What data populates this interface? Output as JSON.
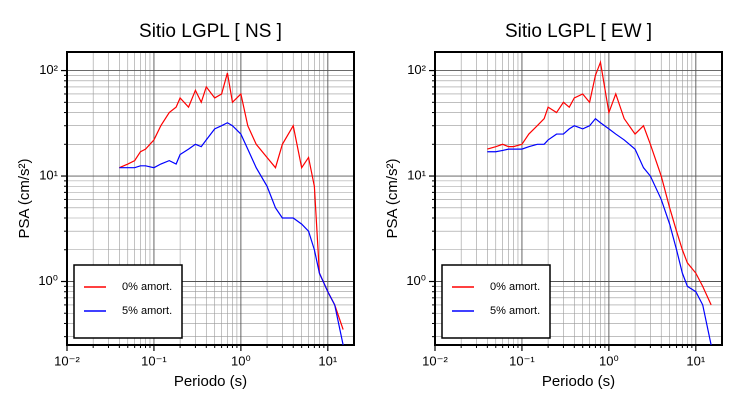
{
  "chart_data": [
    {
      "type": "line",
      "title": "Sitio LGPL [ NS ]",
      "x_label": "Periodo (s)",
      "y_label": "PSA (cm/s²)",
      "log_x": true,
      "log_y": true,
      "grid": true,
      "minor_grid": true,
      "legend": "lower left",
      "xlim": [
        0.01,
        20
      ],
      "ylim": [
        0.25,
        150
      ],
      "xticks": [
        {
          "value": 0.01,
          "label": "10⁻²"
        },
        {
          "value": 0.1,
          "label": "10⁻¹"
        },
        {
          "value": 1,
          "label": "10⁰"
        },
        {
          "value": 10,
          "label": "10¹"
        }
      ],
      "yticks": [
        {
          "value": 1,
          "label": "10⁰"
        },
        {
          "value": 10,
          "label": "10¹"
        },
        {
          "value": 100,
          "label": "10²"
        }
      ],
      "x": [
        0.04,
        0.05,
        0.06,
        0.07,
        0.08,
        0.1,
        0.12,
        0.15,
        0.18,
        0.2,
        0.25,
        0.3,
        0.35,
        0.4,
        0.5,
        0.6,
        0.7,
        0.8,
        1.0,
        1.2,
        1.5,
        2.0,
        2.5,
        3.0,
        4.0,
        5.0,
        6.0,
        7.0,
        8.0,
        10,
        12,
        15
      ],
      "series": [
        {
          "name": "0% amort.",
          "color": "#ff0000",
          "values": [
            12,
            13,
            14,
            17,
            18,
            22,
            30,
            40,
            45,
            55,
            45,
            65,
            50,
            70,
            55,
            60,
            95,
            50,
            60,
            30,
            20,
            15,
            12,
            20,
            30,
            12,
            15,
            8,
            1.2,
            0.8,
            0.6,
            0.35
          ]
        },
        {
          "name": "5% amort.",
          "color": "#0000ff",
          "values": [
            12,
            12,
            12,
            12.5,
            12.5,
            12,
            13,
            14,
            13,
            16,
            18,
            20,
            19,
            22,
            28,
            30,
            32,
            30,
            25,
            18,
            12,
            8,
            5,
            4,
            4,
            3.5,
            3,
            2,
            1.2,
            0.8,
            0.6,
            0.25
          ]
        }
      ]
    },
    {
      "type": "line",
      "title": "Sitio LGPL [ EW ]",
      "x_label": "Periodo (s)",
      "y_label": "PSA (cm/s²)",
      "log_x": true,
      "log_y": true,
      "grid": true,
      "minor_grid": true,
      "legend": "lower left",
      "xlim": [
        0.01,
        20
      ],
      "ylim": [
        0.25,
        150
      ],
      "xticks": [
        {
          "value": 0.01,
          "label": "10⁻²"
        },
        {
          "value": 0.1,
          "label": "10⁻¹"
        },
        {
          "value": 1,
          "label": "10⁰"
        },
        {
          "value": 10,
          "label": "10¹"
        }
      ],
      "yticks": [
        {
          "value": 1,
          "label": "10⁰"
        },
        {
          "value": 10,
          "label": "10¹"
        },
        {
          "value": 100,
          "label": "10²"
        }
      ],
      "x": [
        0.04,
        0.05,
        0.06,
        0.07,
        0.08,
        0.1,
        0.12,
        0.15,
        0.18,
        0.2,
        0.25,
        0.3,
        0.35,
        0.4,
        0.5,
        0.6,
        0.7,
        0.8,
        1.0,
        1.2,
        1.5,
        2.0,
        2.5,
        3.0,
        4.0,
        5.0,
        6.0,
        7.0,
        8.0,
        10,
        12,
        15
      ],
      "series": [
        {
          "name": "0% amort.",
          "color": "#ff0000",
          "values": [
            18,
            19,
            20,
            19,
            19,
            20,
            25,
            30,
            35,
            45,
            40,
            50,
            45,
            55,
            60,
            50,
            90,
            120,
            40,
            60,
            35,
            25,
            30,
            20,
            10,
            5,
            3,
            2,
            1.5,
            1.2,
            0.9,
            0.6
          ]
        },
        {
          "name": "5% amort.",
          "color": "#0000ff",
          "values": [
            17,
            17,
            17.5,
            18,
            18,
            18,
            19,
            20,
            20,
            22,
            25,
            25,
            28,
            30,
            28,
            30,
            35,
            32,
            28,
            25,
            22,
            18,
            12,
            10,
            6,
            3.5,
            2,
            1.2,
            0.9,
            0.8,
            0.6,
            0.25
          ]
        }
      ]
    }
  ]
}
